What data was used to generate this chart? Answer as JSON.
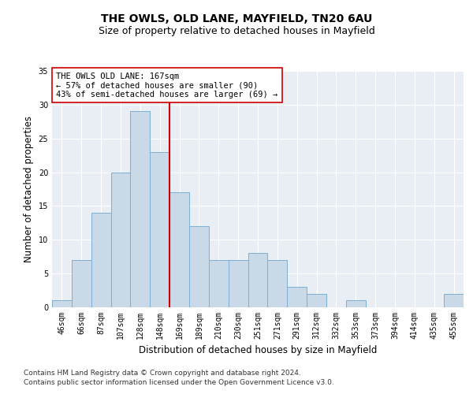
{
  "title": "THE OWLS, OLD LANE, MAYFIELD, TN20 6AU",
  "subtitle": "Size of property relative to detached houses in Mayfield",
  "xlabel": "Distribution of detached houses by size in Mayfield",
  "ylabel": "Number of detached properties",
  "footnote1": "Contains HM Land Registry data © Crown copyright and database right 2024.",
  "footnote2": "Contains public sector information licensed under the Open Government Licence v3.0.",
  "categories": [
    "46sqm",
    "66sqm",
    "87sqm",
    "107sqm",
    "128sqm",
    "148sqm",
    "169sqm",
    "189sqm",
    "210sqm",
    "230sqm",
    "251sqm",
    "271sqm",
    "291sqm",
    "312sqm",
    "332sqm",
    "353sqm",
    "373sqm",
    "394sqm",
    "414sqm",
    "435sqm",
    "455sqm"
  ],
  "values": [
    1,
    7,
    14,
    20,
    29,
    23,
    17,
    12,
    7,
    7,
    8,
    7,
    3,
    2,
    0,
    1,
    0,
    0,
    0,
    0,
    2
  ],
  "bar_color": "#c9d9e8",
  "bar_edge_color": "#7bafd4",
  "background_color": "#e8eef4",
  "grid_color": "#ffffff",
  "redline_index": 6,
  "redline_color": "#cc0000",
  "annotation_text": "THE OWLS OLD LANE: 167sqm\n← 57% of detached houses are smaller (90)\n43% of semi-detached houses are larger (69) →",
  "annotation_box_color": "#ffffff",
  "annotation_box_edge": "#cc0000",
  "ylim": [
    0,
    35
  ],
  "yticks": [
    0,
    5,
    10,
    15,
    20,
    25,
    30,
    35
  ],
  "title_fontsize": 10,
  "subtitle_fontsize": 9,
  "label_fontsize": 8.5,
  "tick_fontsize": 7,
  "annot_fontsize": 7.5,
  "footnote_fontsize": 6.5
}
